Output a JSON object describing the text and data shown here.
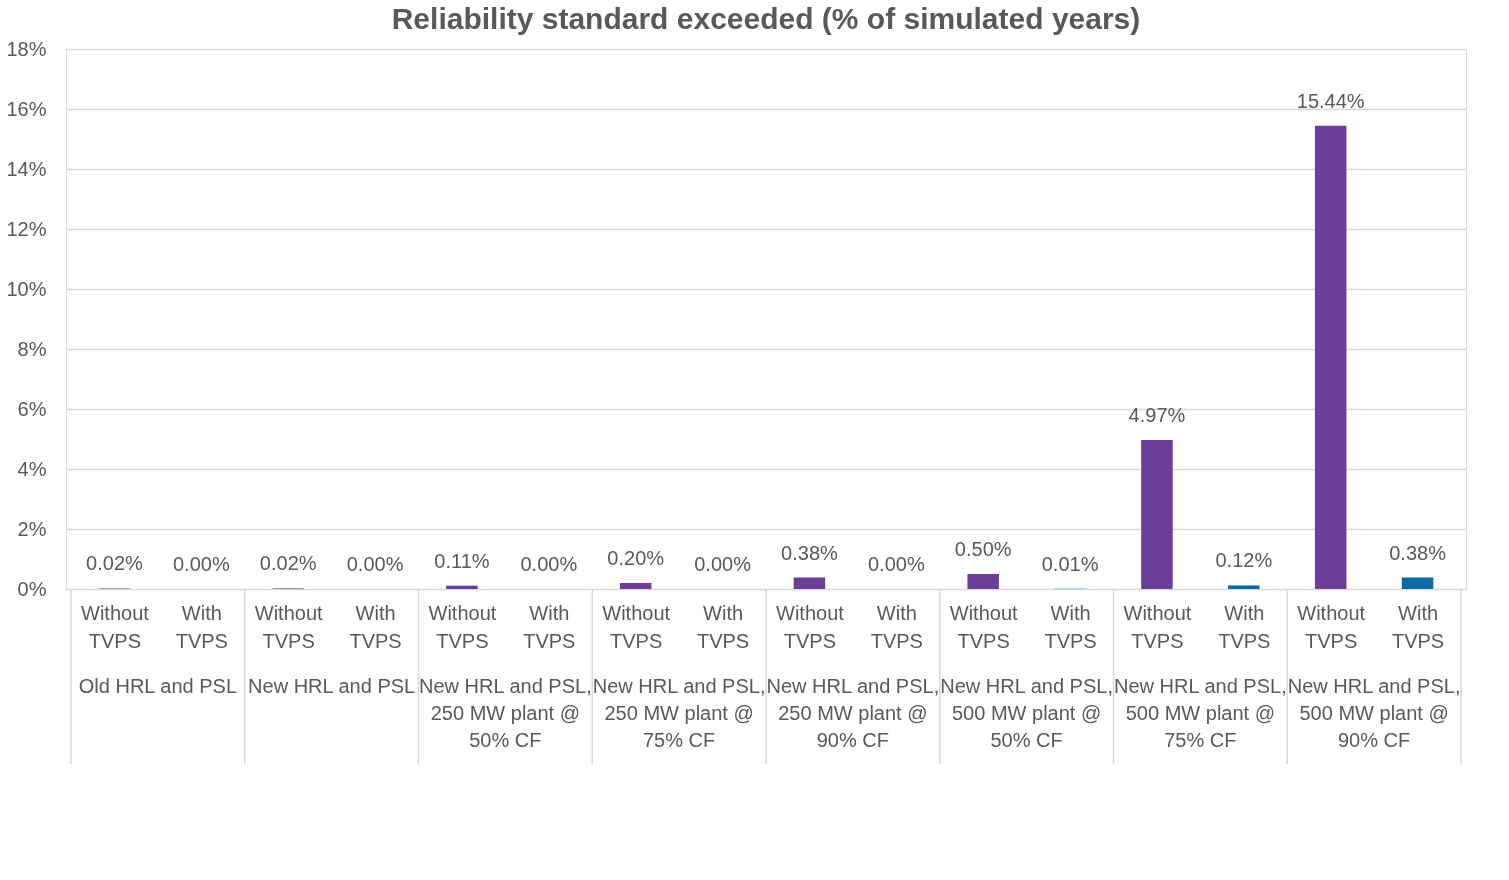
{
  "chart_data": {
    "type": "bar",
    "title": "Reliability standard exceeded (% of simulated years)",
    "categories": [
      "Without TVPS",
      "With TVPS",
      "Without TVPS",
      "With TVPS",
      "Without TVPS",
      "With TVPS",
      "Without TVPS",
      "With TVPS",
      "Without TVPS",
      "With TVPS",
      "Without TVPS",
      "With TVPS",
      "Without TVPS",
      "With TVPS",
      "Without TVPS",
      "With TVPS"
    ],
    "values": [
      0.02,
      0.0,
      0.02,
      0.0,
      0.11,
      0.0,
      0.2,
      0.0,
      0.38,
      0.0,
      0.5,
      0.01,
      4.97,
      0.12,
      15.44,
      0.38
    ],
    "value_labels": [
      "0.02%",
      "0.00%",
      "0.02%",
      "0.00%",
      "0.11%",
      "0.00%",
      "0.20%",
      "0.00%",
      "0.38%",
      "0.00%",
      "0.50%",
      "0.01%",
      "4.97%",
      "0.12%",
      "15.44%",
      "0.38%"
    ],
    "colors": [
      "#6b3e98",
      "#0e6aa6",
      "#6b3e98",
      "#0e6aa6",
      "#6b3e98",
      "#0e6aa6",
      "#6b3e98",
      "#0e6aa6",
      "#6b3e98",
      "#0e6aa6",
      "#6b3e98",
      "#0e6aa6",
      "#6b3e98",
      "#0e6aa6",
      "#6b3e98",
      "#0e6aa6"
    ],
    "annotations": [
      "Old HRL and PSL",
      "New HRL and PSL",
      "New HRL and PSL, 250 MW plant @ 50% CF",
      "New HRL and PSL, 250 MW plant @ 75% CF",
      "New HRL and PSL, 250 MW plant @ 90% CF",
      "New HRL and PSL, 500 MW plant @ 50% CF",
      "New HRL and PSL, 500 MW plant @ 75% CF",
      "New HRL and PSL, 500 MW plant @ 90% CF"
    ],
    "ylim": [
      0,
      18
    ],
    "yticks": [
      {
        "value": 0,
        "label": "0%"
      },
      {
        "value": 2,
        "label": "2%"
      },
      {
        "value": 4,
        "label": "4%"
      },
      {
        "value": 6,
        "label": "6%"
      },
      {
        "value": 8,
        "label": "8%"
      },
      {
        "value": 10,
        "label": "10%"
      },
      {
        "value": 12,
        "label": "12%"
      },
      {
        "value": 14,
        "label": "14%"
      },
      {
        "value": 16,
        "label": "16%"
      },
      {
        "value": 18,
        "label": "18%"
      }
    ],
    "grid": "y"
  }
}
